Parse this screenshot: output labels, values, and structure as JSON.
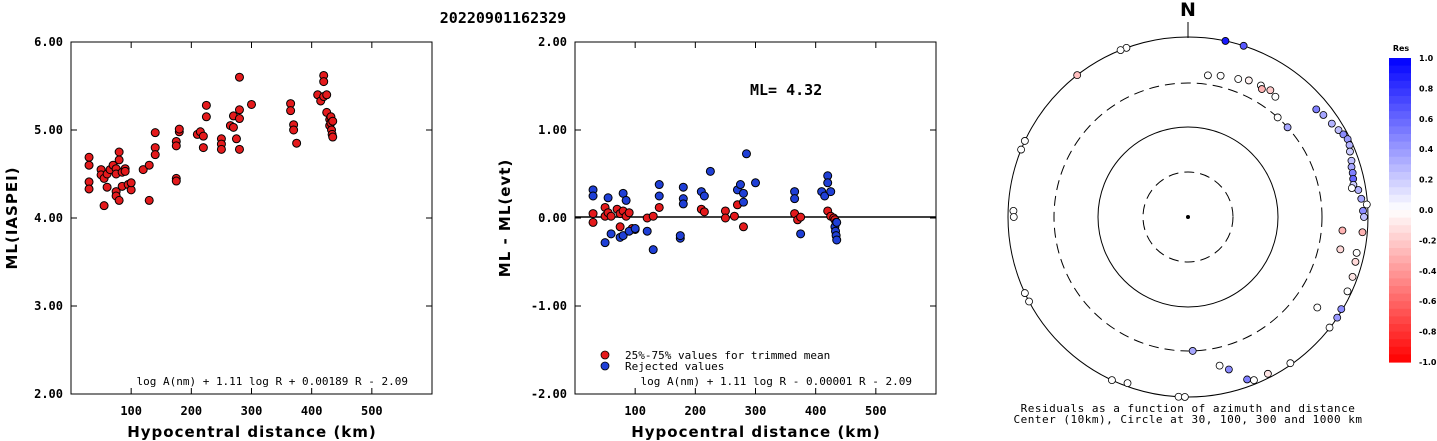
{
  "title": "20220901162329",
  "chart_data": [
    {
      "type": "scatter",
      "xlabel": "Hypocentral distance (km)",
      "ylabel": "ML(IASPEI)",
      "xlim": [
        0,
        600
      ],
      "ylim": [
        2,
        6
      ],
      "xticks": [
        "100",
        "200",
        "300",
        "400",
        "500"
      ],
      "yticks": [
        "2.00",
        "3.00",
        "4.00",
        "5.00",
        "6.00"
      ],
      "formula": "log A(nm) + 1.11 log R + 0.00189 R - 2.09",
      "series": [
        {
          "color": "#e41a1c",
          "points": [
            [
              30,
              4.69
            ],
            [
              30,
              4.6
            ],
            [
              30,
              4.41
            ],
            [
              30,
              4.33
            ],
            [
              50,
              4.55
            ],
            [
              50,
              4.49
            ],
            [
              55,
              4.45
            ],
            [
              55,
              4.14
            ],
            [
              60,
              4.35
            ],
            [
              60,
              4.5
            ],
            [
              65,
              4.55
            ],
            [
              70,
              4.6
            ],
            [
              75,
              4.56
            ],
            [
              75,
              4.5
            ],
            [
              75,
              4.3
            ],
            [
              75,
              4.25
            ],
            [
              80,
              4.2
            ],
            [
              80,
              4.66
            ],
            [
              80,
              4.75
            ],
            [
              85,
              4.36
            ],
            [
              85,
              4.52
            ],
            [
              90,
              4.56
            ],
            [
              90,
              4.53
            ],
            [
              95,
              4.38
            ],
            [
              100,
              4.32
            ],
            [
              100,
              4.4
            ],
            [
              120,
              4.55
            ],
            [
              130,
              4.6
            ],
            [
              130,
              4.2
            ],
            [
              140,
              4.8
            ],
            [
              140,
              4.72
            ],
            [
              140,
              4.97
            ],
            [
              175,
              4.45
            ],
            [
              175,
              4.42
            ],
            [
              175,
              4.87
            ],
            [
              175,
              4.82
            ],
            [
              180,
              4.98
            ],
            [
              180,
              5.01
            ],
            [
              210,
              4.95
            ],
            [
              215,
              4.98
            ],
            [
              220,
              4.93
            ],
            [
              220,
              4.8
            ],
            [
              225,
              5.15
            ],
            [
              225,
              5.28
            ],
            [
              250,
              4.9
            ],
            [
              250,
              4.84
            ],
            [
              250,
              4.78
            ],
            [
              265,
              5.05
            ],
            [
              270,
              5.16
            ],
            [
              270,
              5.03
            ],
            [
              275,
              4.9
            ],
            [
              280,
              4.78
            ],
            [
              280,
              5.13
            ],
            [
              280,
              5.23
            ],
            [
              280,
              5.6
            ],
            [
              300,
              5.29
            ],
            [
              365,
              5.3
            ],
            [
              365,
              5.22
            ],
            [
              370,
              5.06
            ],
            [
              370,
              5.0
            ],
            [
              375,
              4.85
            ],
            [
              410,
              5.4
            ],
            [
              415,
              5.33
            ],
            [
              420,
              5.38
            ],
            [
              420,
              5.62
            ],
            [
              420,
              5.55
            ],
            [
              425,
              5.4
            ],
            [
              425,
              5.2
            ],
            [
              430,
              5.12
            ],
            [
              430,
              5.05
            ],
            [
              432,
              5.15
            ],
            [
              432,
              5.08
            ],
            [
              433,
              5.0
            ],
            [
              434,
              4.95
            ],
            [
              435,
              4.92
            ],
            [
              435,
              5.1
            ]
          ]
        }
      ]
    },
    {
      "type": "scatter",
      "xlabel": "Hypocentral distance (km)",
      "ylabel": "ML - ML(evt)",
      "xlim": [
        0,
        600
      ],
      "ylim": [
        -2,
        2
      ],
      "xticks": [
        "100",
        "200",
        "300",
        "400",
        "500"
      ],
      "yticks": [
        "-2.00",
        "-1.00",
        "0.00",
        "1.00",
        "2.00"
      ],
      "ml_label": "ML= 4.32",
      "zero_line": 0,
      "formula": "log A(nm) + 1.11 log R - 0.00001 R - 2.09",
      "legend": [
        {
          "label": "25%-75% values for trimmed mean",
          "color": "#e41a1c"
        },
        {
          "label": "Rejected values",
          "color": "#1f3fd6"
        }
      ],
      "series": [
        {
          "name": "25%-75% values for trimmed mean",
          "color": "#e41a1c",
          "points": [
            [
              30,
              0.05
            ],
            [
              30,
              -0.05
            ],
            [
              50,
              0.12
            ],
            [
              50,
              0.02
            ],
            [
              55,
              0.06
            ],
            [
              60,
              0.02
            ],
            [
              70,
              0.1
            ],
            [
              75,
              0.05
            ],
            [
              75,
              -0.1
            ],
            [
              80,
              0.08
            ],
            [
              85,
              0.02
            ],
            [
              90,
              0.06
            ],
            [
              95,
              -0.12
            ],
            [
              100,
              -0.13
            ],
            [
              120,
              0.0
            ],
            [
              130,
              0.02
            ],
            [
              140,
              0.12
            ],
            [
              210,
              0.1
            ],
            [
              215,
              0.07
            ],
            [
              250,
              0.08
            ],
            [
              250,
              0.0
            ],
            [
              265,
              0.02
            ],
            [
              270,
              0.15
            ],
            [
              280,
              -0.1
            ],
            [
              365,
              0.05
            ],
            [
              370,
              -0.02
            ],
            [
              375,
              0.01
            ],
            [
              420,
              0.08
            ],
            [
              425,
              0.02
            ],
            [
              430,
              0.0
            ],
            [
              432,
              -0.02
            ],
            [
              434,
              -0.05
            ]
          ]
        },
        {
          "name": "Rejected values",
          "color": "#1f3fd6",
          "points": [
            [
              30,
              0.32
            ],
            [
              30,
              0.25
            ],
            [
              50,
              -0.28
            ],
            [
              55,
              0.23
            ],
            [
              60,
              -0.18
            ],
            [
              75,
              -0.22
            ],
            [
              80,
              0.28
            ],
            [
              80,
              -0.2
            ],
            [
              85,
              0.2
            ],
            [
              90,
              -0.15
            ],
            [
              100,
              -0.12
            ],
            [
              120,
              -0.15
            ],
            [
              130,
              -0.36
            ],
            [
              140,
              0.38
            ],
            [
              140,
              0.25
            ],
            [
              175,
              -0.23
            ],
            [
              175,
              -0.2
            ],
            [
              180,
              0.35
            ],
            [
              180,
              0.22
            ],
            [
              180,
              0.16
            ],
            [
              210,
              0.3
            ],
            [
              215,
              0.25
            ],
            [
              225,
              0.53
            ],
            [
              270,
              0.32
            ],
            [
              275,
              0.38
            ],
            [
              280,
              0.28
            ],
            [
              280,
              0.18
            ],
            [
              285,
              0.73
            ],
            [
              300,
              0.4
            ],
            [
              365,
              0.3
            ],
            [
              365,
              0.22
            ],
            [
              375,
              -0.18
            ],
            [
              410,
              0.3
            ],
            [
              415,
              0.25
            ],
            [
              420,
              0.48
            ],
            [
              420,
              0.4
            ],
            [
              425,
              0.3
            ],
            [
              432,
              -0.1
            ],
            [
              433,
              -0.15
            ],
            [
              434,
              -0.2
            ],
            [
              435,
              -0.25
            ],
            [
              435,
              -0.05
            ]
          ]
        }
      ]
    },
    {
      "type": "polar-scatter",
      "north_label": "N",
      "caption_line1": "Residuals as a function of azimuth and distance",
      "caption_line2": "Center (10km), Circle at 30, 100, 300 and 1000 km",
      "rings_km": [
        30,
        100,
        300,
        1000
      ],
      "points": [
        [
          340,
          1250,
          0.0
        ],
        [
          338,
          1180,
          0.0
        ],
        [
          322,
          1090,
          -0.25
        ],
        [
          295,
          1080,
          0.0
        ],
        [
          292,
          1060,
          0.0
        ],
        [
          272,
          870,
          0.0
        ],
        [
          270,
          860,
          0.0
        ],
        [
          12,
          1140,
          0.9
        ],
        [
          18,
          1140,
          0.65
        ],
        [
          8,
          380,
          0.0
        ],
        [
          13,
          400,
          0.0
        ],
        [
          20,
          420,
          0.0
        ],
        [
          24,
          450,
          -0.05
        ],
        [
          29,
          460,
          0.0
        ],
        [
          33,
          470,
          -0.2
        ],
        [
          30,
          430,
          -0.3
        ],
        [
          36,
          440,
          0.0
        ],
        [
          42,
          300,
          0.0
        ],
        [
          48,
          300,
          0.35
        ],
        [
          50,
          720,
          0.5
        ],
        [
          53,
          760,
          0.35
        ],
        [
          57,
          800,
          0.3
        ],
        [
          60,
          850,
          0.25
        ],
        [
          62,
          900,
          0.45
        ],
        [
          64,
          940,
          0.4
        ],
        [
          66,
          920,
          0.3
        ],
        [
          68,
          870,
          0.2
        ],
        [
          71,
          830,
          0.25
        ],
        [
          73,
          790,
          0.35
        ],
        [
          75,
          780,
          0.5
        ],
        [
          77,
          760,
          0.6
        ],
        [
          79,
          740,
          0.2
        ],
        [
          81,
          820,
          0.3
        ],
        [
          84,
          860,
          0.35
        ],
        [
          88,
          880,
          0.45
        ],
        [
          90,
          900,
          0.25
        ],
        [
          86,
          980,
          0.0
        ],
        [
          95,
          880,
          -0.3
        ],
        [
          102,
          820,
          0.0
        ],
        [
          105,
          840,
          -0.15
        ],
        [
          110,
          880,
          -0.1
        ],
        [
          115,
          900,
          0.0
        ],
        [
          121,
          970,
          0.45
        ],
        [
          124,
          1000,
          0.4
        ],
        [
          128,
          990,
          0.0
        ],
        [
          145,
          960,
          0.0
        ],
        [
          153,
          900,
          -0.1
        ],
        [
          158,
          900,
          0.0
        ],
        [
          160,
          830,
          0.5
        ],
        [
          165,
          560,
          0.45
        ],
        [
          168,
          480,
          0.0
        ],
        [
          178,
          300,
          0.35
        ],
        [
          183,
          1000,
          0.0
        ],
        [
          181,
          1010,
          0.0
        ],
        [
          200,
          920,
          0.0
        ],
        [
          205,
          1000,
          0.0
        ],
        [
          242,
          1100,
          0.0
        ],
        [
          245,
          1120,
          0.0
        ],
        [
          125,
          560,
          0.0
        ],
        [
          102,
          530,
          -0.15
        ],
        [
          95,
          520,
          -0.3
        ],
        [
          80,
          700,
          0.0
        ]
      ],
      "colorbar": {
        "title": "Res",
        "labels": [
          "1.0",
          "0.8",
          "0.6",
          "0.4",
          "0.2",
          "0.0",
          "-0.2",
          "-0.4",
          "-0.6",
          "-0.8",
          "-1.0"
        ],
        "max_color": "#0000ff",
        "min_color": "#ff0000"
      }
    }
  ]
}
